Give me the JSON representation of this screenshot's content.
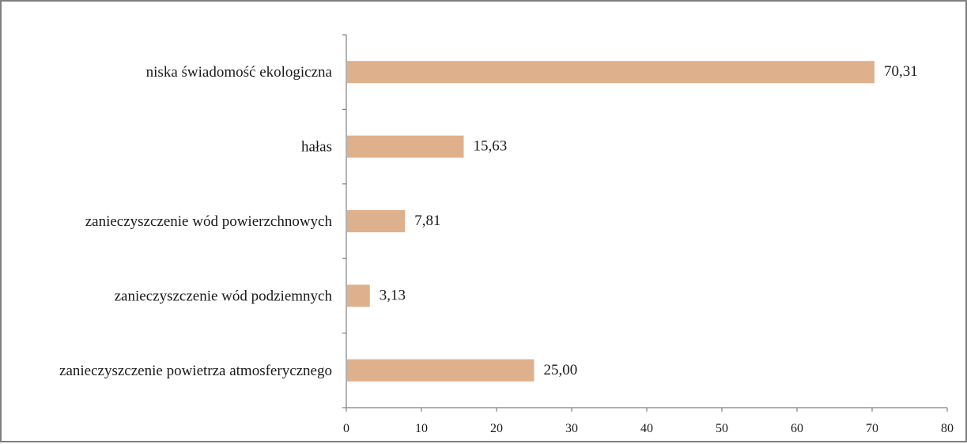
{
  "chart_data": {
    "type": "bar",
    "orientation": "horizontal",
    "categories": [
      "niska świadomość ekologiczna",
      "hałas",
      "zanieczyszczenie wód powierzchnowych",
      "zanieczyszczenie wód podziemnych",
      "zanieczyszczenie powietrza atmosferycznego"
    ],
    "values": [
      70.31,
      15.63,
      7.81,
      3.13,
      25.0
    ],
    "value_labels": [
      "70,31",
      "15,63",
      "7,81",
      "3,13",
      "25,00"
    ],
    "x_ticks": [
      "0",
      "10",
      "20",
      "30",
      "40",
      "50",
      "60",
      "70",
      "80"
    ],
    "xlim": [
      0,
      80
    ],
    "title": "",
    "xlabel": "",
    "ylabel": "",
    "bar_color": "#dfb08c",
    "axis_color": "#7f7f7f",
    "border_color": "#7f7f7f",
    "grid": false,
    "legend": "none"
  }
}
